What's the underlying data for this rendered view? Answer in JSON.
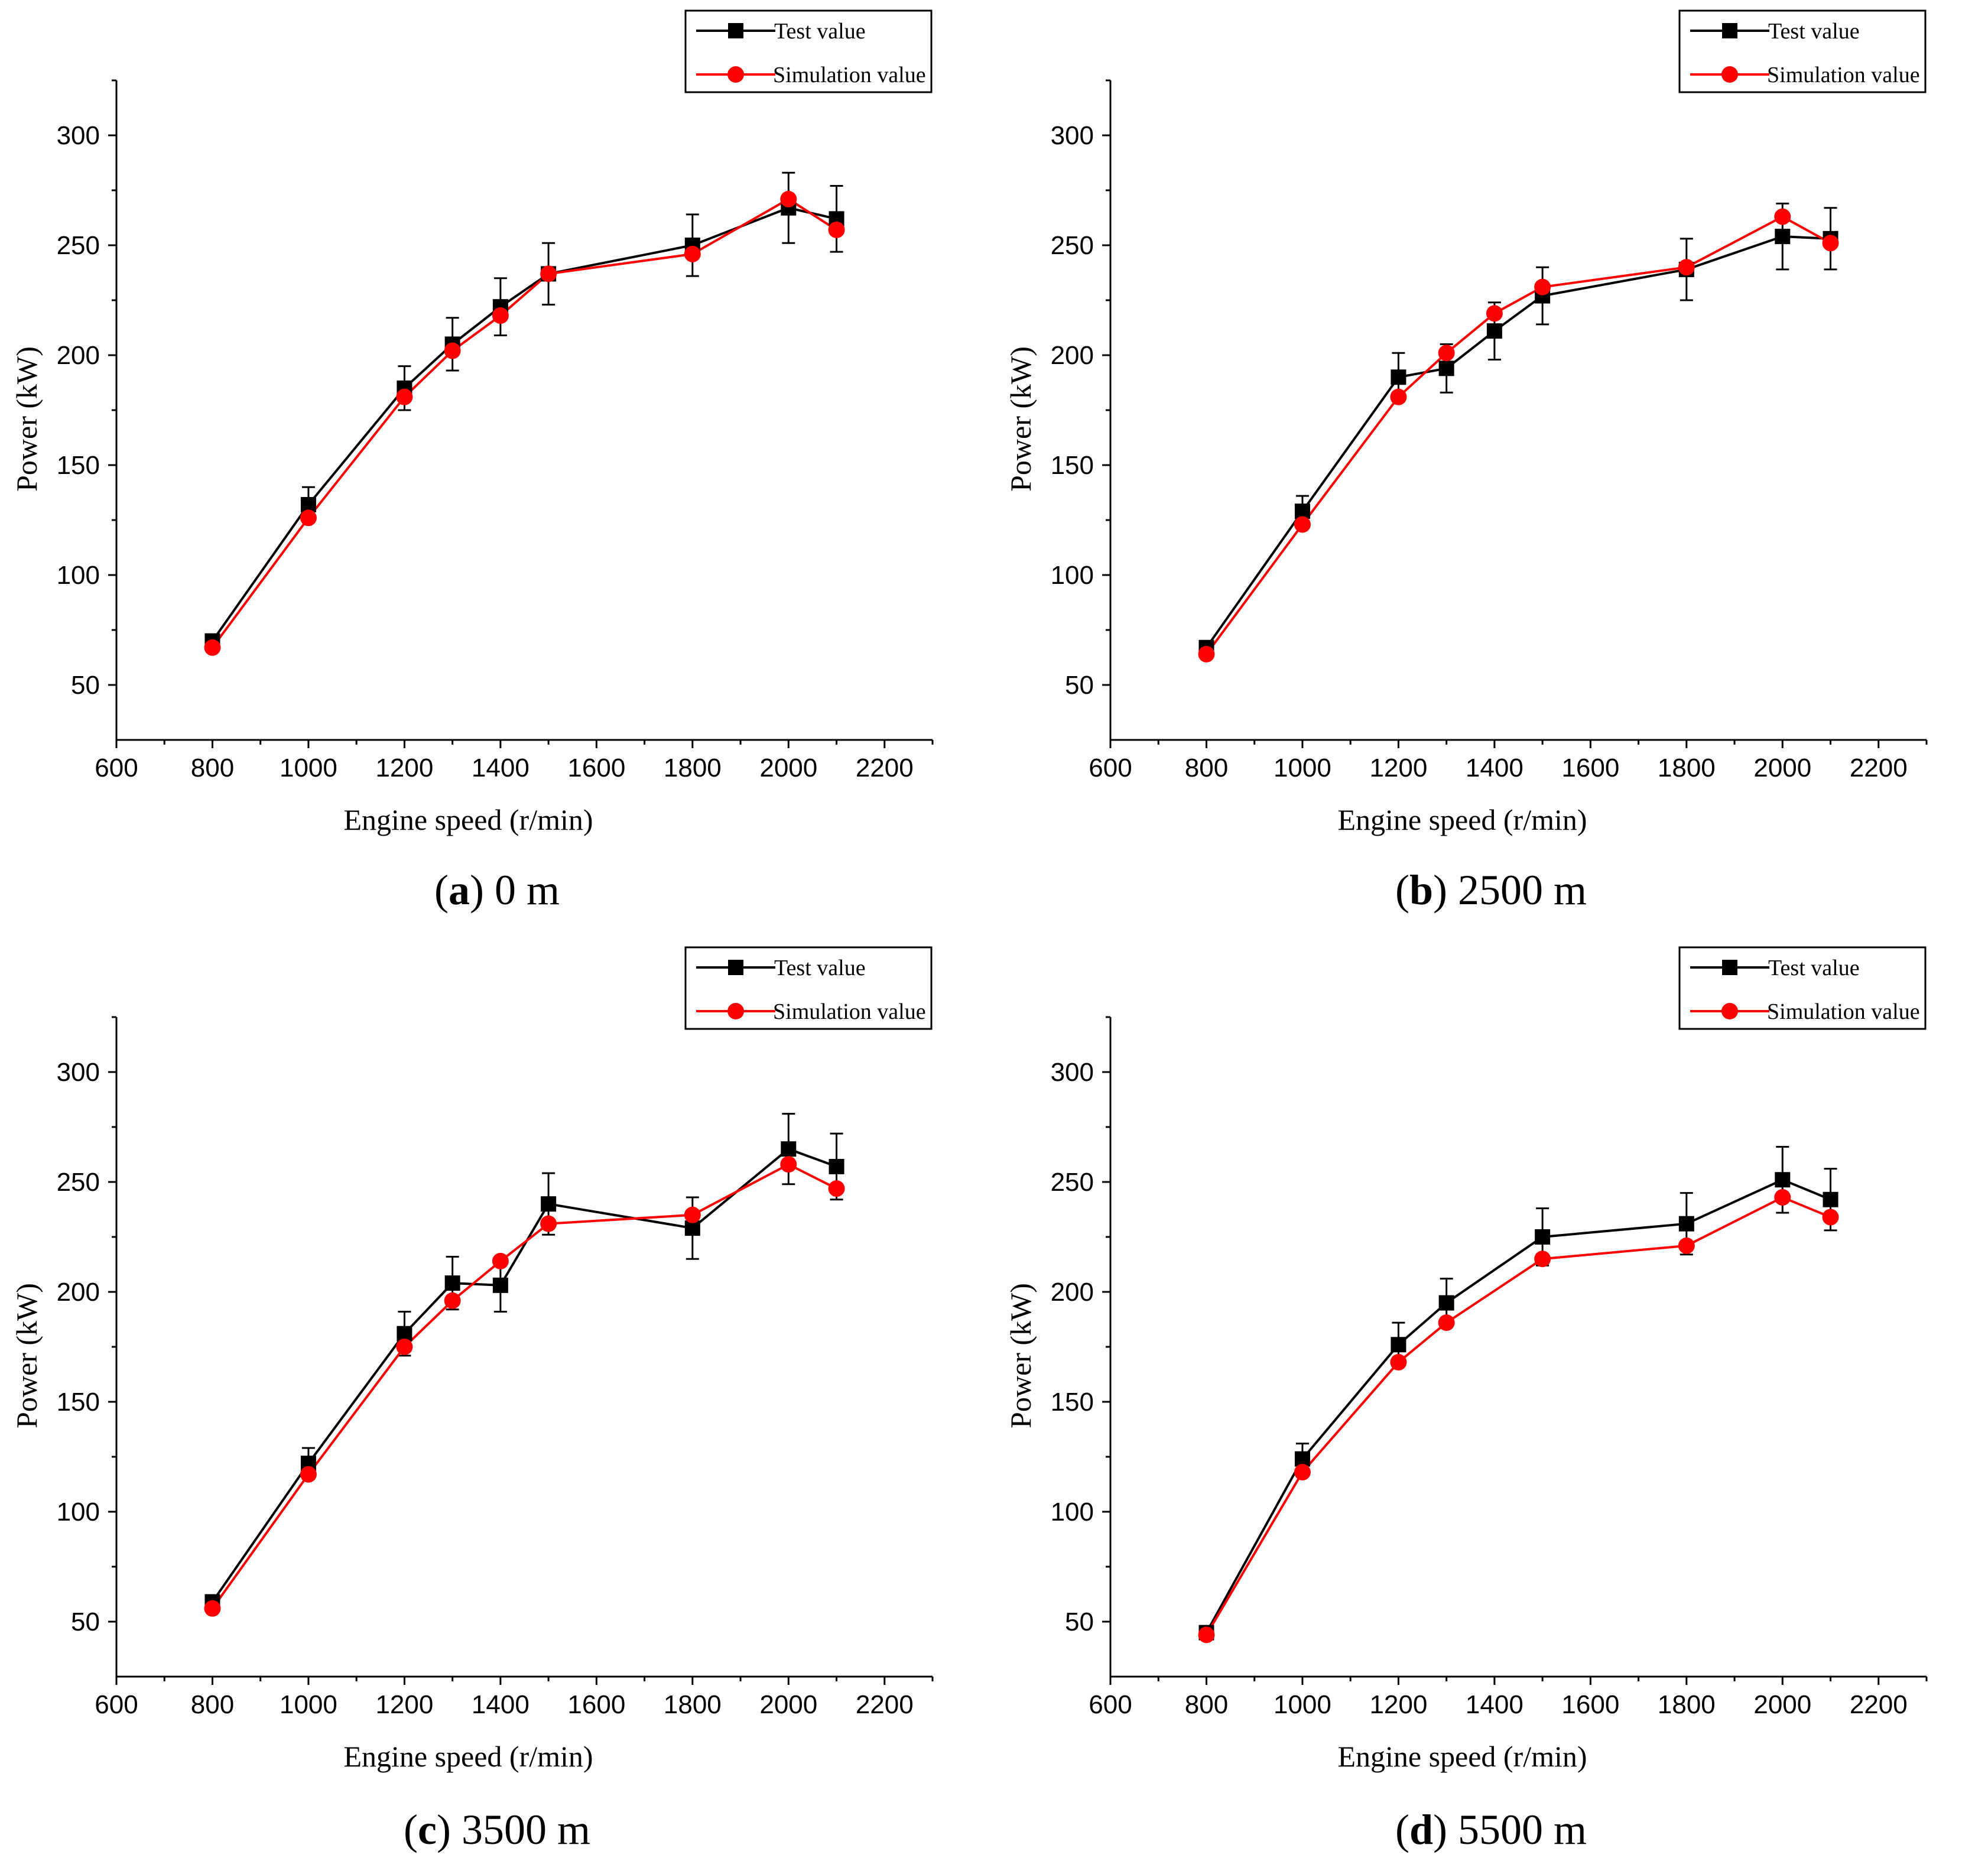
{
  "chart_data": [
    {
      "type": "line",
      "label": "a",
      "caption": "0 m",
      "xlabel": "Engine speed (r/min)",
      "ylabel": "Power (kW)",
      "xlim": [
        600,
        2300
      ],
      "ylim": [
        25,
        325
      ],
      "xticks": [
        600,
        800,
        1000,
        1200,
        1400,
        1600,
        1800,
        2000,
        2200
      ],
      "yticks": [
        50,
        100,
        150,
        200,
        250,
        300
      ],
      "x": [
        800,
        1000,
        1200,
        1300,
        1400,
        1500,
        1800,
        2000,
        2100
      ],
      "series": [
        {
          "name": "Test value",
          "marker": "square",
          "color": "#000000",
          "values": [
            70,
            132,
            185,
            205,
            222,
            237,
            250,
            267,
            262
          ],
          "errors": [
            3,
            8,
            10,
            12,
            13,
            14,
            14,
            16,
            15
          ]
        },
        {
          "name": "Simulation value",
          "marker": "circle",
          "color": "#ff0000",
          "values": [
            67,
            126,
            181,
            202,
            218,
            237,
            246,
            271,
            257
          ]
        }
      ]
    },
    {
      "type": "line",
      "label": "b",
      "caption": "2500 m",
      "xlabel": "Engine speed (r/min)",
      "ylabel": "Power (kW)",
      "xlim": [
        600,
        2300
      ],
      "ylim": [
        25,
        325
      ],
      "xticks": [
        600,
        800,
        1000,
        1200,
        1400,
        1600,
        1800,
        2000,
        2200
      ],
      "yticks": [
        50,
        100,
        150,
        200,
        250,
        300
      ],
      "x": [
        800,
        1000,
        1200,
        1300,
        1400,
        1500,
        1800,
        2000,
        2100
      ],
      "series": [
        {
          "name": "Test value",
          "marker": "square",
          "color": "#000000",
          "values": [
            67,
            129,
            190,
            194,
            211,
            227,
            239,
            254,
            253
          ],
          "errors": [
            3,
            7,
            11,
            11,
            13,
            13,
            14,
            15,
            14
          ]
        },
        {
          "name": "Simulation value",
          "marker": "circle",
          "color": "#ff0000",
          "values": [
            64,
            123,
            181,
            201,
            219,
            231,
            240,
            263,
            251
          ]
        }
      ]
    },
    {
      "type": "line",
      "label": "c",
      "caption": "3500 m",
      "xlabel": "Engine speed (r/min)",
      "ylabel": "Power (kW)",
      "xlim": [
        600,
        2300
      ],
      "ylim": [
        25,
        325
      ],
      "xticks": [
        600,
        800,
        1000,
        1200,
        1400,
        1600,
        1800,
        2000,
        2200
      ],
      "yticks": [
        50,
        100,
        150,
        200,
        250,
        300
      ],
      "x": [
        800,
        1000,
        1200,
        1300,
        1400,
        1500,
        1800,
        2000,
        2100
      ],
      "series": [
        {
          "name": "Test value",
          "marker": "square",
          "color": "#000000",
          "values": [
            59,
            122,
            181,
            204,
            203,
            240,
            229,
            265,
            257
          ],
          "errors": [
            3,
            7,
            10,
            12,
            12,
            14,
            14,
            16,
            15
          ]
        },
        {
          "name": "Simulation value",
          "marker": "circle",
          "color": "#ff0000",
          "values": [
            56,
            117,
            175,
            196,
            214,
            231,
            235,
            258,
            247
          ]
        }
      ]
    },
    {
      "type": "line",
      "label": "d",
      "caption": "5500 m",
      "xlabel": "Engine speed (r/min)",
      "ylabel": "Power (kW)",
      "xlim": [
        600,
        2300
      ],
      "ylim": [
        25,
        325
      ],
      "xticks": [
        600,
        800,
        1000,
        1200,
        1400,
        1600,
        1800,
        2000,
        2200
      ],
      "yticks": [
        50,
        100,
        150,
        200,
        250,
        300
      ],
      "x": [
        800,
        1000,
        1200,
        1300,
        1500,
        1800,
        2000,
        2100
      ],
      "series": [
        {
          "name": "Test value",
          "marker": "square",
          "color": "#000000",
          "values": [
            45,
            124,
            176,
            195,
            225,
            231,
            251,
            242
          ],
          "errors": [
            3,
            7,
            10,
            11,
            13,
            14,
            15,
            14
          ]
        },
        {
          "name": "Simulation value",
          "marker": "circle",
          "color": "#ff0000",
          "values": [
            44,
            118,
            168,
            186,
            215,
            221,
            243,
            234
          ]
        }
      ]
    }
  ]
}
